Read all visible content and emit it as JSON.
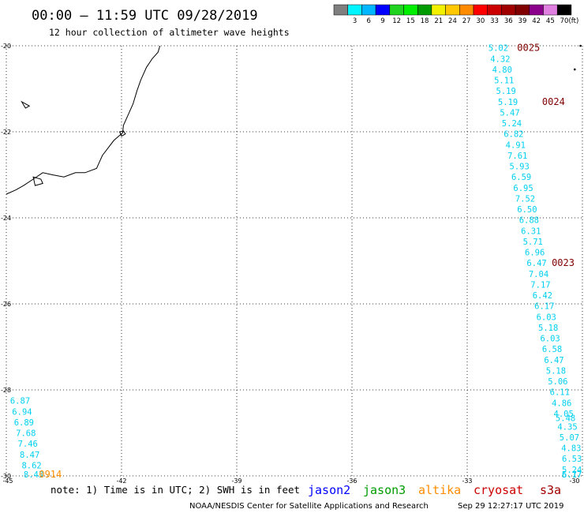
{
  "header": {
    "title": "00:00 – 11:59 UTC 09/28/2019",
    "subtitle": "12 hour collection of altimeter wave heights"
  },
  "colorbar": {
    "unit": "(ft)",
    "bins": [
      {
        "color": "#7f7f7f",
        "label": ""
      },
      {
        "color": "#00f5ff",
        "label": "3"
      },
      {
        "color": "#00b6ff",
        "label": "6"
      },
      {
        "color": "#0000ff",
        "label": "9"
      },
      {
        "color": "#1fd31f",
        "label": "12"
      },
      {
        "color": "#00ee00",
        "label": "15"
      },
      {
        "color": "#009b00",
        "label": "18"
      },
      {
        "color": "#f2f200",
        "label": "21"
      },
      {
        "color": "#ffc800",
        "label": "24"
      },
      {
        "color": "#ff8c00",
        "label": "27"
      },
      {
        "color": "#ff0000",
        "label": "30"
      },
      {
        "color": "#cc0000",
        "label": "33"
      },
      {
        "color": "#a00000",
        "label": "36"
      },
      {
        "color": "#800000",
        "label": "39"
      },
      {
        "color": "#8b008b",
        "label": "42"
      },
      {
        "color": "#e080e0",
        "label": "45"
      },
      {
        "color": "#000000",
        "label": "70"
      }
    ]
  },
  "map": {
    "lon_range": [
      -45,
      -30
    ],
    "lat_range": [
      -30,
      -20
    ],
    "lat_ticks": [
      {
        "value": -20,
        "label": "-20"
      },
      {
        "value": -22,
        "label": "-22"
      },
      {
        "value": -24,
        "label": "-24"
      },
      {
        "value": -26,
        "label": "-26"
      },
      {
        "value": -28,
        "label": "-28"
      },
      {
        "value": -30,
        "label": "-30"
      }
    ],
    "lon_ticks": [
      {
        "value": -45,
        "label": "-45"
      },
      {
        "value": -42,
        "label": "-42"
      },
      {
        "value": -39,
        "label": "-39"
      },
      {
        "value": -36,
        "label": "-36"
      },
      {
        "value": -33,
        "label": "-33"
      },
      {
        "value": -30,
        "label": "-30"
      }
    ],
    "coastline": [
      [
        -41.0,
        -20.0
      ],
      [
        -41.05,
        -20.15
      ],
      [
        -41.2,
        -20.3
      ],
      [
        -41.35,
        -20.5
      ],
      [
        -41.5,
        -20.8
      ],
      [
        -41.6,
        -21.05
      ],
      [
        -41.7,
        -21.35
      ],
      [
        -41.85,
        -21.65
      ],
      [
        -41.95,
        -21.85
      ],
      [
        -41.97,
        -22.02
      ],
      [
        -42.2,
        -22.2
      ],
      [
        -42.5,
        -22.55
      ],
      [
        -42.65,
        -22.85
      ],
      [
        -42.95,
        -22.95
      ],
      [
        -43.2,
        -22.95
      ],
      [
        -43.5,
        -23.05
      ],
      [
        -43.8,
        -23.0
      ],
      [
        -44.05,
        -22.95
      ],
      [
        -44.3,
        -23.1
      ],
      [
        -44.55,
        -23.25
      ],
      [
        -44.75,
        -23.35
      ],
      [
        -45.0,
        -23.45
      ]
    ],
    "islands": [
      [
        [
          -44.6,
          -21.3
        ],
        [
          -44.5,
          -21.35
        ],
        [
          -44.4,
          -21.4
        ],
        [
          -44.5,
          -21.45
        ],
        [
          -44.6,
          -21.3
        ]
      ],
      [
        [
          -42.05,
          -22.0
        ],
        [
          -41.95,
          -21.98
        ],
        [
          -41.9,
          -22.05
        ],
        [
          -42.0,
          -22.1
        ],
        [
          -42.05,
          -22.0
        ]
      ],
      [
        [
          -44.3,
          -23.05
        ],
        [
          -44.1,
          -23.1
        ],
        [
          -44.05,
          -23.2
        ],
        [
          -44.25,
          -23.25
        ],
        [
          -44.3,
          -23.05
        ]
      ]
    ],
    "points": [
      {
        "lon": -30.2,
        "lat": -20.55,
        "color": "#000000"
      },
      {
        "lon": -30.05,
        "lat": -20.0,
        "color": "#000000"
      }
    ]
  },
  "passes": [
    {
      "name": "cryosat-east",
      "color": "#00d0f0",
      "values": [
        {
          "lon": -32.45,
          "lat": -20.05,
          "text": "5.02"
        },
        {
          "lon": -32.4,
          "lat": -20.3,
          "text": "4.32"
        },
        {
          "lon": -32.35,
          "lat": -20.55,
          "text": "4.80"
        },
        {
          "lon": -32.3,
          "lat": -20.8,
          "text": "5.11"
        },
        {
          "lon": -32.25,
          "lat": -21.05,
          "text": "5.19"
        },
        {
          "lon": -32.2,
          "lat": -21.3,
          "text": "5.19"
        },
        {
          "lon": -32.15,
          "lat": -21.55,
          "text": "5.47"
        },
        {
          "lon": -32.1,
          "lat": -21.8,
          "text": "5.24"
        },
        {
          "lon": -32.05,
          "lat": -22.05,
          "text": "6.82"
        },
        {
          "lon": -32.0,
          "lat": -22.3,
          "text": "4.91"
        },
        {
          "lon": -31.95,
          "lat": -22.55,
          "text": "7.61"
        },
        {
          "lon": -31.9,
          "lat": -22.8,
          "text": "5.93"
        },
        {
          "lon": -31.85,
          "lat": -23.05,
          "text": "6.59"
        },
        {
          "lon": -31.8,
          "lat": -23.3,
          "text": "6.95"
        },
        {
          "lon": -31.75,
          "lat": -23.55,
          "text": "7.52"
        },
        {
          "lon": -31.7,
          "lat": -23.8,
          "text": "6.50"
        },
        {
          "lon": -31.65,
          "lat": -24.05,
          "text": "6.88"
        },
        {
          "lon": -31.6,
          "lat": -24.3,
          "text": "6.31"
        },
        {
          "lon": -31.55,
          "lat": -24.55,
          "text": "5.71"
        },
        {
          "lon": -31.5,
          "lat": -24.8,
          "text": "6.96"
        },
        {
          "lon": -31.45,
          "lat": -25.05,
          "text": "6.47"
        },
        {
          "lon": -31.4,
          "lat": -25.3,
          "text": "7.04"
        },
        {
          "lon": -31.35,
          "lat": -25.55,
          "text": "7.17"
        },
        {
          "lon": -31.3,
          "lat": -25.8,
          "text": "6.42"
        },
        {
          "lon": -31.25,
          "lat": -26.05,
          "text": "6.17"
        },
        {
          "lon": -31.2,
          "lat": -26.3,
          "text": "6.03"
        },
        {
          "lon": -31.15,
          "lat": -26.55,
          "text": "5.18"
        },
        {
          "lon": -31.1,
          "lat": -26.8,
          "text": "6.03"
        },
        {
          "lon": -31.05,
          "lat": -27.05,
          "text": "6.58"
        },
        {
          "lon": -31.0,
          "lat": -27.3,
          "text": "6.47"
        },
        {
          "lon": -30.95,
          "lat": -27.55,
          "text": "5.18"
        },
        {
          "lon": -30.9,
          "lat": -27.8,
          "text": "5.06"
        },
        {
          "lon": -30.85,
          "lat": -28.05,
          "text": "6.11"
        },
        {
          "lon": -30.8,
          "lat": -28.3,
          "text": "4.86"
        },
        {
          "lon": -30.75,
          "lat": -28.55,
          "text": "4.05"
        },
        {
          "lon": -30.7,
          "lat": -28.65,
          "text": "5.48"
        },
        {
          "lon": -30.65,
          "lat": -28.85,
          "text": "4.35"
        },
        {
          "lon": -30.6,
          "lat": -29.1,
          "text": "5.07"
        },
        {
          "lon": -30.55,
          "lat": -29.35,
          "text": "4.83"
        },
        {
          "lon": -30.5,
          "lat": -29.6,
          "text": "6.53"
        },
        {
          "lon": -30.45,
          "lat": -29.85,
          "text": "5.24"
        },
        {
          "lon": -30.4,
          "lat": -30.1,
          "text": "5.77"
        },
        {
          "lon": -30.35,
          "lat": -30.35,
          "text": "6.17"
        }
      ]
    },
    {
      "name": "west-track",
      "color": "#00d0f0",
      "values": [
        {
          "lon": -44.9,
          "lat": -28.25,
          "text": "6.87"
        },
        {
          "lon": -44.85,
          "lat": -28.5,
          "text": "6.94"
        },
        {
          "lon": -44.8,
          "lat": -28.75,
          "text": "6.89"
        },
        {
          "lon": -44.75,
          "lat": -29.0,
          "text": "7.68"
        },
        {
          "lon": -44.7,
          "lat": -29.25,
          "text": "7.46"
        },
        {
          "lon": -44.65,
          "lat": -29.5,
          "text": "8.47"
        },
        {
          "lon": -44.6,
          "lat": -29.75,
          "text": "8.62"
        },
        {
          "lon": -44.55,
          "lat": -30.0,
          "text": "8.43"
        }
      ]
    }
  ],
  "time_labels": [
    {
      "lon": -31.7,
      "lat": -20.05,
      "text": "0025",
      "color": "#800000"
    },
    {
      "lon": -31.05,
      "lat": -21.3,
      "text": "0024",
      "color": "#800000"
    },
    {
      "lon": -30.8,
      "lat": -25.05,
      "text": "0023",
      "color": "#800000"
    },
    {
      "lon": -29.95,
      "lat": -28.6,
      "text": "00",
      "color": "#800000"
    },
    {
      "lon": -44.15,
      "lat": -30.0,
      "text": "0914",
      "color": "#ff8c00"
    }
  ],
  "footer": {
    "note": "note: 1) Time is in UTC; 2) SWH is in feet",
    "satellites": [
      {
        "name": "jason2",
        "color": "#0000ff"
      },
      {
        "name": "jason3",
        "color": "#009b00"
      },
      {
        "name": "altika",
        "color": "#ff8c00"
      },
      {
        "name": "cryosat",
        "color": "#cc0000"
      },
      {
        "name": "s3a",
        "color": "#a00000"
      }
    ],
    "credit": "NOAA/NESDIS Center for Satellite Applications and Research",
    "timestamp": "Sep 29 12:27:17 UTC 2019"
  }
}
